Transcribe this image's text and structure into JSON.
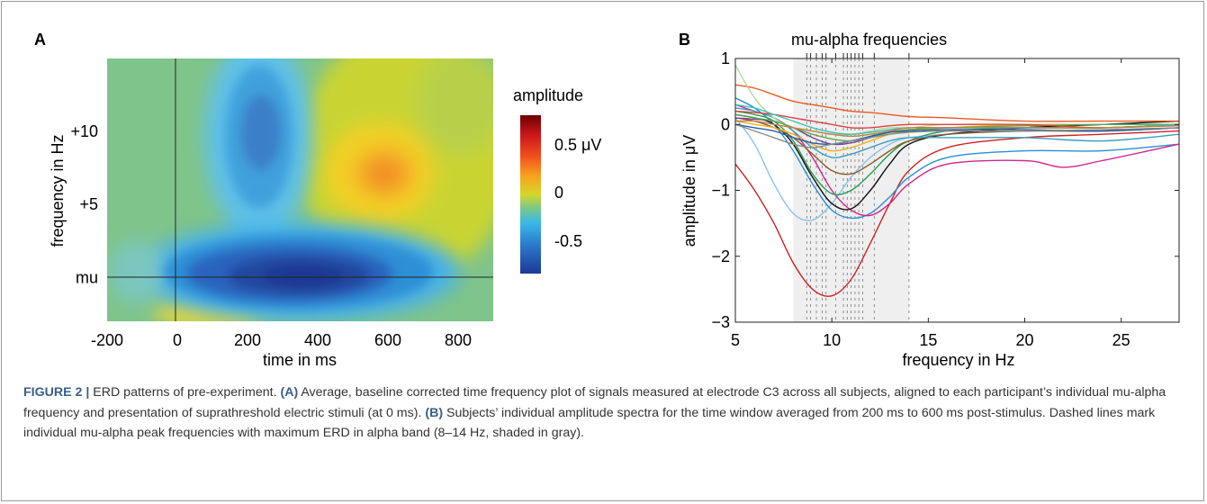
{
  "panel_a": {
    "label": "A",
    "xlabel": "time in ms",
    "ylabel": "frequency in Hz",
    "colorbar_title": "amplitude",
    "colorbar_ticks": [
      "0.5 μV",
      "0",
      "-0.5"
    ],
    "colorbar_colors": [
      "#7f0000",
      "#d7191c",
      "#f57a20",
      "#f9c21b",
      "#cfd62a",
      "#7fc97f",
      "#36b3e8",
      "#2c7fd0",
      "#1f3f99"
    ]
  },
  "panel_b": {
    "label": "B",
    "top_label": "mu-alpha frequencies",
    "xlabel": "frequency in Hz",
    "ylabel": "amplitude in μV",
    "shaded_band_color": "#efefef",
    "peak_frequencies": [
      8.7,
      8.9,
      9.2,
      9.5,
      9.7,
      10.2,
      10.6,
      10.8,
      11.0,
      11.2,
      11.4,
      11.6,
      12.2,
      14.0
    ]
  },
  "chart_data": [
    {
      "type": "heatmap",
      "title": "",
      "xlabel": "time in ms",
      "ylabel": "frequency in Hz",
      "xlim": [
        -200,
        900
      ],
      "x_ticks": [
        "-200",
        "0",
        "200",
        "400",
        "600",
        "800"
      ],
      "x_tick_values": [
        -200,
        0,
        200,
        400,
        600,
        800
      ],
      "y_ticks": [
        "+10",
        "+5",
        "mu"
      ],
      "y_tick_values": [
        10,
        5,
        0
      ],
      "ylim": [
        -3,
        15
      ],
      "colorbar_range": [
        -0.7,
        0.7
      ],
      "reference_lines": {
        "x": 0,
        "y": 0
      },
      "features": [
        {
          "name": "baseline",
          "value": 0.05
        },
        {
          "name": "desync-mu",
          "time": 360,
          "freq": 0,
          "value": -0.75
        },
        {
          "name": "desync-beta",
          "time": 240,
          "freq": 9.5,
          "value": -0.45
        },
        {
          "name": "rebound",
          "time": 590,
          "freq": 6.5,
          "value": 0.35
        }
      ]
    },
    {
      "type": "line",
      "title": "",
      "xlabel": "frequency in Hz",
      "ylabel": "amplitude in μV",
      "xlim": [
        5,
        28
      ],
      "ylim": [
        -3,
        1
      ],
      "x_ticks": [
        5,
        10,
        15,
        20,
        25
      ],
      "y_ticks": [
        1,
        0,
        -1,
        -2,
        -3
      ],
      "shaded_band": [
        8,
        14
      ],
      "series": [
        {
          "color": "#cc2222",
          "x": [
            5,
            6,
            7,
            8,
            9,
            10,
            11,
            12,
            13,
            14,
            16,
            20,
            24,
            28
          ],
          "values": [
            -0.6,
            -1.0,
            -1.5,
            -2.1,
            -2.5,
            -2.6,
            -2.35,
            -1.8,
            -1.2,
            -0.7,
            -0.35,
            -0.2,
            -0.15,
            -0.1
          ]
        },
        {
          "color": "#88c4ea",
          "x": [
            5,
            6,
            7,
            8,
            9,
            10,
            11,
            12,
            13,
            14,
            16,
            20,
            24,
            28
          ],
          "values": [
            0.1,
            -0.3,
            -0.9,
            -1.35,
            -1.45,
            -1.2,
            -0.8,
            -0.5,
            -0.3,
            -0.2,
            -0.15,
            -0.1,
            -0.1,
            -0.05
          ]
        },
        {
          "color": "#2a8ed8",
          "x": [
            5,
            6,
            7,
            8,
            9,
            10,
            11,
            12,
            13,
            14,
            16,
            20,
            24,
            28
          ],
          "values": [
            0.4,
            0.25,
            0.0,
            -0.4,
            -0.9,
            -1.3,
            -1.42,
            -1.35,
            -1.1,
            -0.8,
            -0.5,
            -0.4,
            -0.4,
            -0.3
          ]
        },
        {
          "color": "#d0268a",
          "x": [
            5,
            6,
            7,
            8,
            9,
            10,
            11,
            12,
            13,
            14,
            16,
            20,
            22,
            24,
            28
          ],
          "values": [
            0.3,
            0.2,
            0.1,
            -0.1,
            -0.5,
            -1.0,
            -1.3,
            -1.38,
            -1.2,
            -0.9,
            -0.6,
            -0.55,
            -0.65,
            -0.55,
            -0.3
          ]
        },
        {
          "color": "#111111",
          "x": [
            5,
            6,
            7,
            8,
            9,
            10,
            11,
            12,
            13,
            14,
            16,
            20,
            24,
            28
          ],
          "values": [
            0.15,
            0.1,
            0.0,
            -0.3,
            -0.8,
            -1.2,
            -1.28,
            -1.0,
            -0.6,
            -0.3,
            -0.15,
            -0.05,
            0.0,
            0.05
          ]
        },
        {
          "color": "#22a050",
          "x": [
            5,
            6,
            7,
            8,
            9,
            10,
            11,
            12,
            13,
            14,
            16,
            20,
            24,
            28
          ],
          "values": [
            0.2,
            0.15,
            0.05,
            -0.25,
            -0.75,
            -1.05,
            -1.0,
            -0.75,
            -0.45,
            -0.25,
            -0.1,
            -0.05,
            -0.05,
            0.0
          ]
        },
        {
          "color": "#8a5a2a",
          "x": [
            5,
            6,
            7,
            8,
            9,
            10,
            11,
            12,
            13,
            14,
            16,
            20,
            24,
            28
          ],
          "values": [
            0.1,
            0.05,
            -0.05,
            -0.2,
            -0.45,
            -0.7,
            -0.75,
            -0.6,
            -0.4,
            -0.25,
            -0.15,
            -0.1,
            -0.1,
            -0.05
          ]
        },
        {
          "color": "#3aa0c0",
          "x": [
            5,
            6,
            7,
            8,
            9,
            10,
            11,
            12,
            13,
            14,
            16,
            20,
            24,
            28
          ],
          "values": [
            0.25,
            0.2,
            0.1,
            -0.1,
            -0.35,
            -0.5,
            -0.45,
            -0.35,
            -0.25,
            -0.2,
            -0.2,
            -0.2,
            -0.25,
            -0.15
          ]
        },
        {
          "color": "#e85a20",
          "x": [
            5,
            6,
            7,
            8,
            9,
            10,
            11,
            12,
            13,
            14,
            16,
            20,
            24,
            28
          ],
          "values": [
            0.6,
            0.55,
            0.45,
            0.35,
            0.3,
            0.25,
            0.2,
            0.18,
            0.15,
            0.12,
            0.1,
            0.05,
            0.05,
            0.05
          ]
        },
        {
          "color": "#7b3fa0",
          "x": [
            5,
            6,
            7,
            8,
            9,
            10,
            11,
            12,
            13,
            14,
            16,
            20,
            24,
            28
          ],
          "values": [
            0.1,
            0.08,
            0.05,
            -0.05,
            -0.2,
            -0.3,
            -0.28,
            -0.2,
            -0.12,
            -0.08,
            -0.05,
            -0.05,
            -0.05,
            0.0
          ]
        },
        {
          "color": "#f0b020",
          "x": [
            5,
            6,
            7,
            8,
            9,
            10,
            11,
            12,
            13,
            14,
            16,
            20,
            24,
            28
          ],
          "values": [
            0.05,
            0.0,
            -0.05,
            -0.15,
            -0.3,
            -0.4,
            -0.35,
            -0.25,
            -0.15,
            -0.1,
            -0.05,
            0.0,
            0.0,
            0.0
          ]
        },
        {
          "color": "#b0d8a0",
          "x": [
            5,
            6,
            7,
            8,
            9,
            10,
            11,
            12,
            13,
            14,
            16,
            20,
            24,
            28
          ],
          "values": [
            0.9,
            0.4,
            0.1,
            -0.05,
            -0.1,
            -0.15,
            -0.15,
            -0.1,
            -0.05,
            -0.05,
            0.0,
            0.0,
            0.0,
            0.0
          ]
        },
        {
          "color": "#5aaa4a",
          "x": [
            5,
            6,
            7,
            8,
            9,
            10,
            11,
            12,
            13,
            14,
            16,
            20,
            24,
            28
          ],
          "values": [
            0.15,
            0.1,
            0.05,
            -0.05,
            -0.15,
            -0.22,
            -0.25,
            -0.2,
            -0.12,
            -0.08,
            -0.05,
            -0.02,
            0.0,
            0.0
          ]
        },
        {
          "color": "#1e5fb0",
          "x": [
            5,
            6,
            7,
            8,
            9,
            10,
            11,
            12,
            13,
            14,
            16,
            20,
            24,
            28
          ],
          "values": [
            0.0,
            -0.05,
            -0.1,
            -0.2,
            -0.28,
            -0.3,
            -0.25,
            -0.18,
            -0.12,
            -0.1,
            -0.08,
            -0.08,
            -0.1,
            -0.05
          ]
        },
        {
          "color": "#e04040",
          "x": [
            5,
            6,
            7,
            8,
            9,
            10,
            11,
            12,
            13,
            14,
            16,
            20,
            24,
            28
          ],
          "values": [
            0.2,
            0.18,
            0.15,
            0.1,
            0.05,
            0.0,
            -0.05,
            -0.05,
            -0.02,
            0.0,
            0.0,
            0.0,
            -0.05,
            0.0
          ]
        },
        {
          "color": "#8a8a8a",
          "x": [
            5,
            6,
            7,
            8,
            9,
            10,
            11,
            12,
            13,
            14,
            16,
            20,
            24,
            28
          ],
          "values": [
            0.0,
            -0.1,
            -0.2,
            -0.3,
            -0.35,
            -0.3,
            -0.25,
            -0.2,
            -0.15,
            -0.12,
            -0.1,
            -0.1,
            -0.08,
            -0.05
          ]
        },
        {
          "color": "#40c0b0",
          "x": [
            5,
            6,
            7,
            8,
            9,
            10,
            11,
            12,
            13,
            14,
            16,
            20,
            24,
            28
          ],
          "values": [
            0.3,
            0.25,
            0.15,
            0.05,
            -0.05,
            -0.12,
            -0.15,
            -0.12,
            -0.08,
            -0.05,
            -0.05,
            -0.05,
            -0.05,
            0.0
          ]
        },
        {
          "color": "#c08040",
          "x": [
            5,
            6,
            7,
            8,
            9,
            10,
            11,
            12,
            13,
            14,
            16,
            20,
            24,
            28
          ],
          "values": [
            0.05,
            0.05,
            0.0,
            -0.05,
            -0.1,
            -0.15,
            -0.18,
            -0.15,
            -0.1,
            -0.05,
            -0.05,
            -0.05,
            -0.05,
            -0.02
          ]
        }
      ]
    }
  ],
  "caption": {
    "label": "FIGURE 2 |",
    "text_1": " ERD patterns of pre-experiment. ",
    "ref_a": "(A)",
    "text_2": " Average, baseline corrected time frequency plot of signals measured at electrode C3 across all subjects, aligned to each participant’s individual mu-alpha frequency and presentation of suprathreshold electric stimuli (at 0 ms). ",
    "ref_b": "(B)",
    "text_3": " Subjects’ individual amplitude spectra for the time window averaged from 200 ms to 600 ms post-stimulus. Dashed lines mark individual mu-alpha peak frequencies with maximum ERD in alpha band (8–14 Hz, shaded in gray)."
  }
}
